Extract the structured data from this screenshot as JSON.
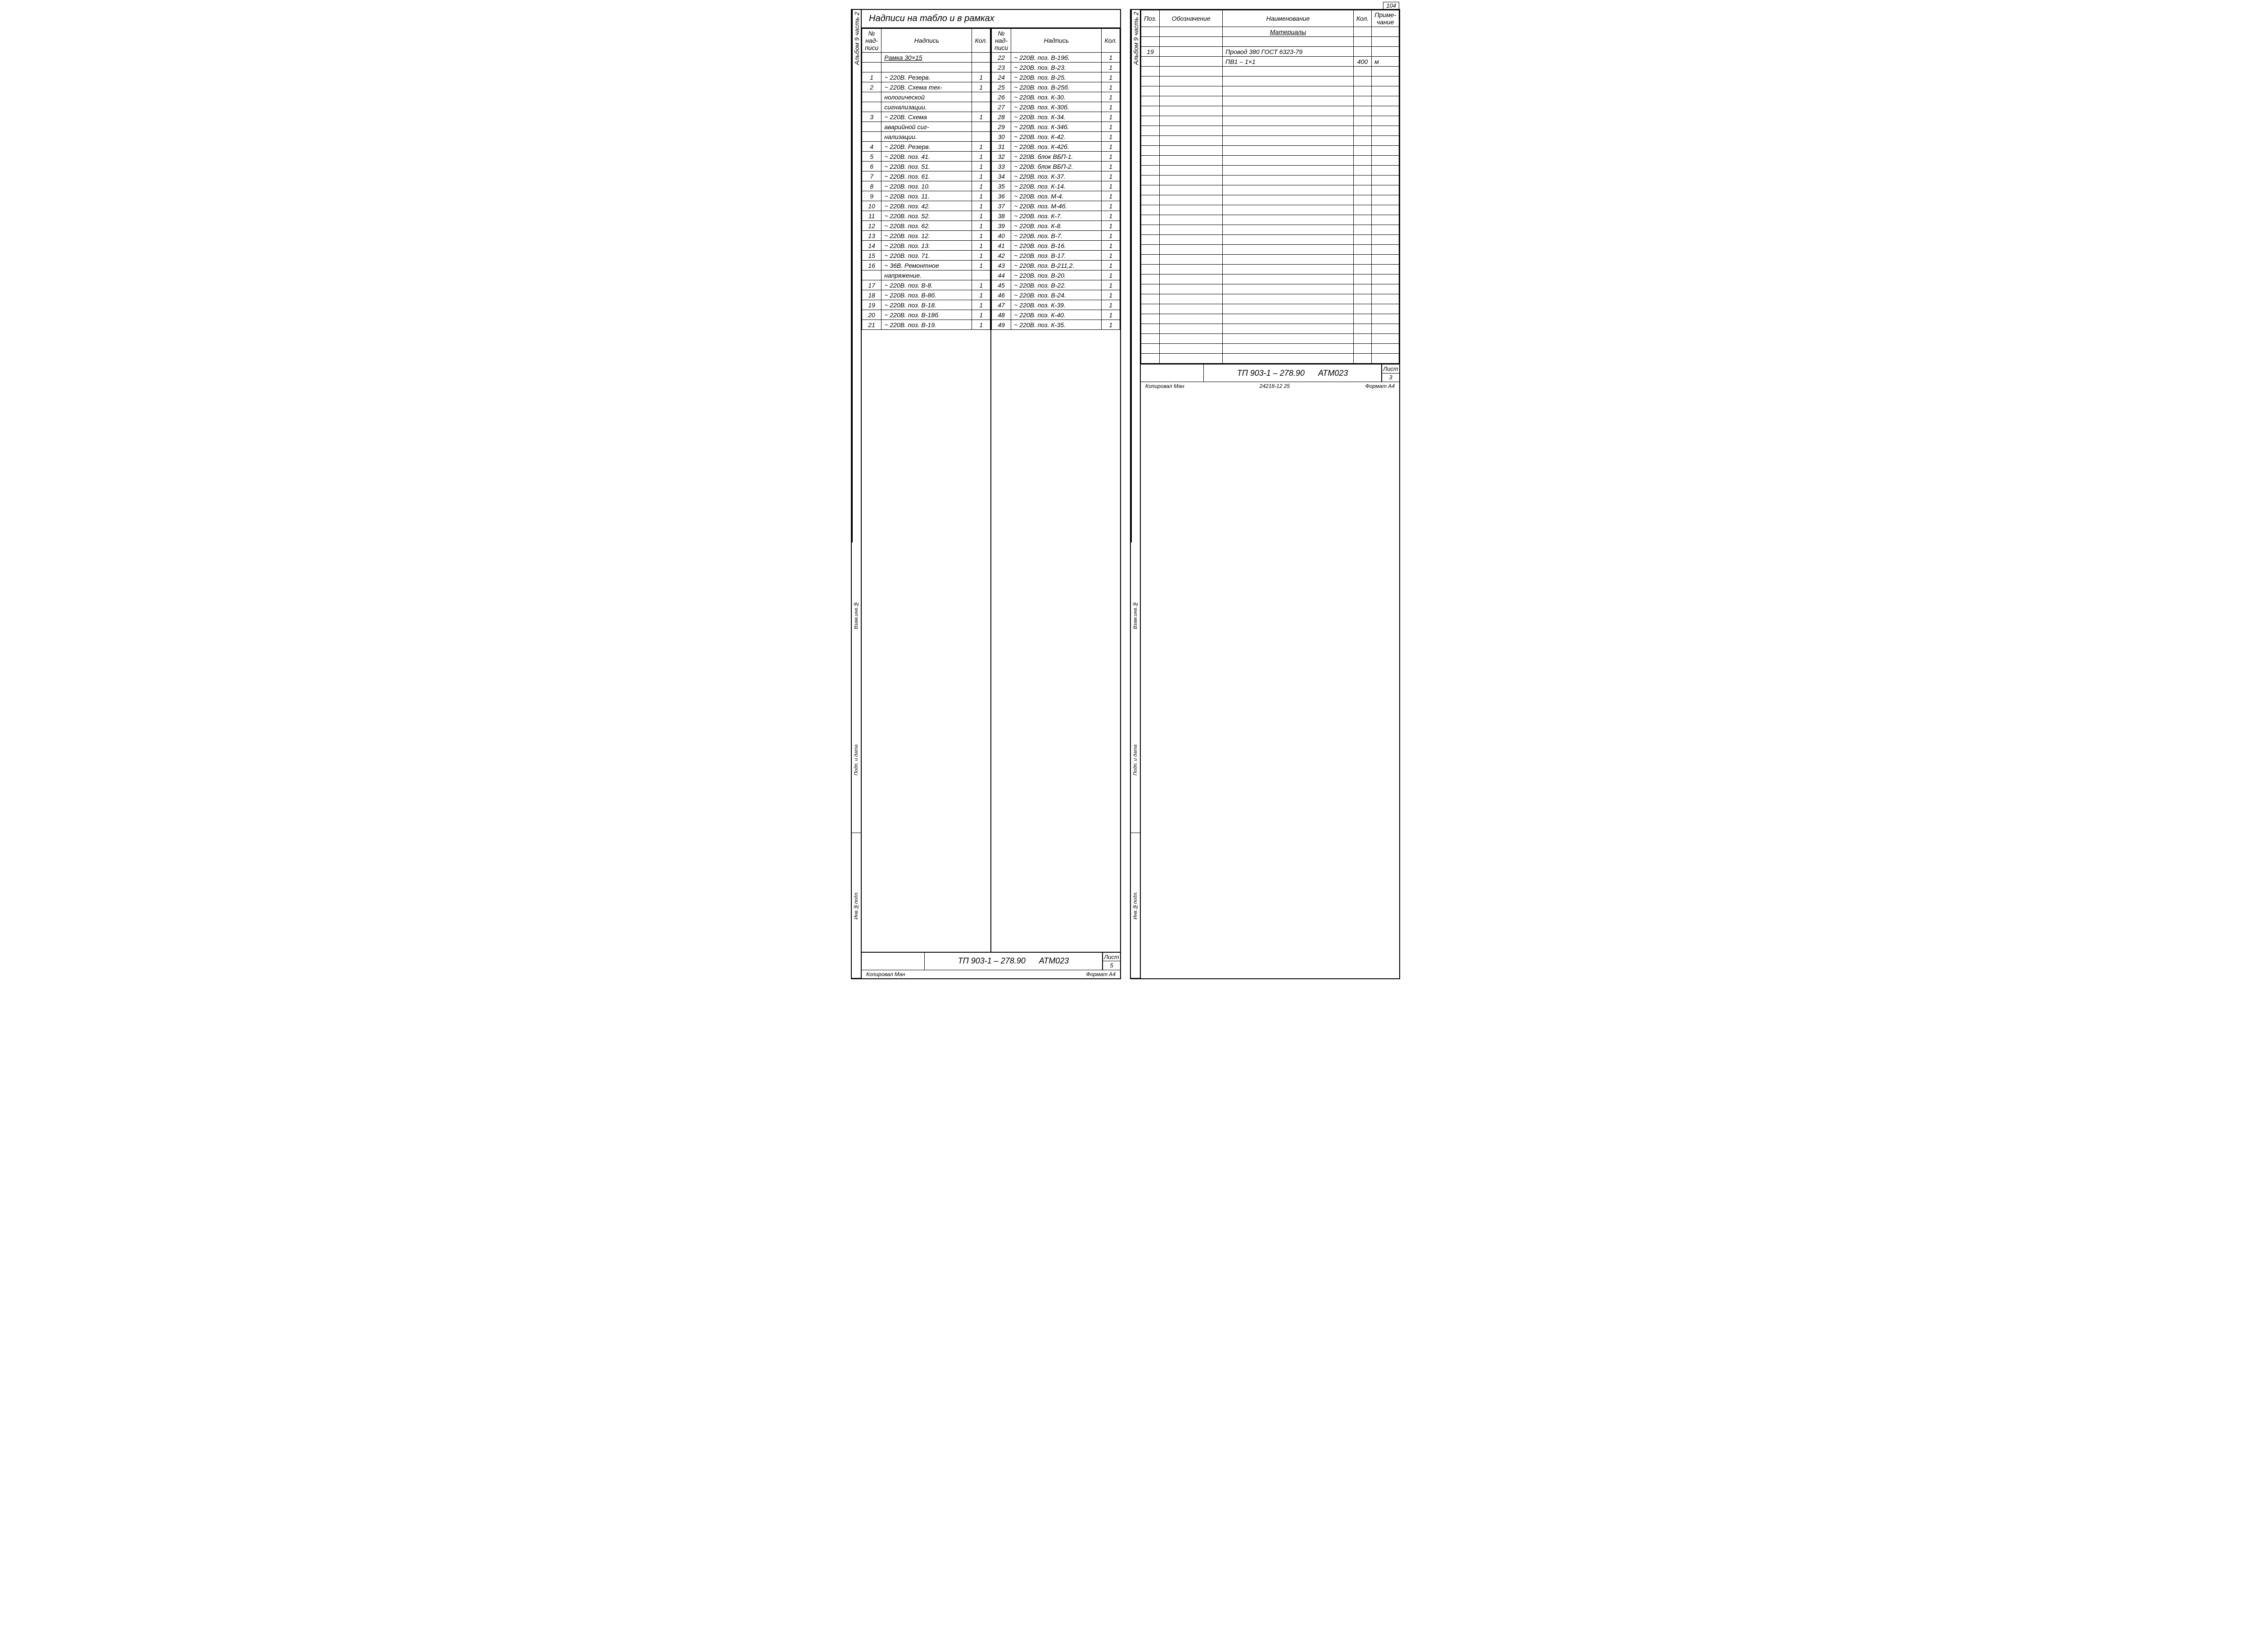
{
  "pageNumber": "104",
  "sideLabelTop": "Альбом 9 часть 2",
  "sideSegments": [
    "Инв.№подл.",
    "Подп. и дата",
    "Взам.инв.№"
  ],
  "sheet1": {
    "title": "Надписи на табло и в рамках",
    "headers": {
      "n": "№ над-писи",
      "label": "Надпись",
      "k": "Кол."
    },
    "underlinedRow": "Рамка 30×15",
    "left": [
      {
        "n": "",
        "t": "Рамка 30×15",
        "k": "",
        "u": true
      },
      {
        "n": "",
        "t": "",
        "k": ""
      },
      {
        "n": "1",
        "t": "~ 220В.  Резерв.",
        "k": "1"
      },
      {
        "n": "2",
        "t": "~ 220В.  Схема тех-",
        "k": "1"
      },
      {
        "n": "",
        "t": "нологической",
        "k": ""
      },
      {
        "n": "",
        "t": "сигнализации.",
        "k": ""
      },
      {
        "n": "3",
        "t": "~ 220В.  Схема",
        "k": "1"
      },
      {
        "n": "",
        "t": "аварийной  сиг-",
        "k": ""
      },
      {
        "n": "",
        "t": "нализации.",
        "k": ""
      },
      {
        "n": "4",
        "t": "~ 220В.  Резерв.",
        "k": "1"
      },
      {
        "n": "5",
        "t": "~ 220В.  поз. 41.",
        "k": "1"
      },
      {
        "n": "6",
        "t": "~ 220В.  поз. 51.",
        "k": "1"
      },
      {
        "n": "7",
        "t": "~ 220В.  поз. 61.",
        "k": "1"
      },
      {
        "n": "8",
        "t": "~ 220В.  поз. 10.",
        "k": "1"
      },
      {
        "n": "9",
        "t": "~ 220В.  поз. 11.",
        "k": "1"
      },
      {
        "n": "10",
        "t": "~ 220В.  поз. 42.",
        "k": "1"
      },
      {
        "n": "11",
        "t": "~ 220В.  поз. 52.",
        "k": "1"
      },
      {
        "n": "12",
        "t": "~ 220В.  поз. 62.",
        "k": "1"
      },
      {
        "n": "13",
        "t": "~ 220В.  поз. 12.",
        "k": "1"
      },
      {
        "n": "14",
        "t": "~ 220В.  поз. 13.",
        "k": "1"
      },
      {
        "n": "15",
        "t": "~ 220В.  поз. 71.",
        "k": "1"
      },
      {
        "n": "16",
        "t": "~ 36В.  Ремонтное",
        "k": "1"
      },
      {
        "n": "",
        "t": "напряжение.",
        "k": ""
      },
      {
        "n": "17",
        "t": "~ 220В. поз. В-8.",
        "k": "1"
      },
      {
        "n": "18",
        "t": "~ 220В. поз. В-8б.",
        "k": "1"
      },
      {
        "n": "19",
        "t": "~ 220В. поз. В-18.",
        "k": "1"
      },
      {
        "n": "20",
        "t": "~ 220В. поз. В-18б.",
        "k": "1"
      },
      {
        "n": "21",
        "t": "~ 220В. поз. В-19.",
        "k": "1"
      }
    ],
    "right": [
      {
        "n": "22",
        "t": "~ 220В. поз.  В-19б.",
        "k": "1"
      },
      {
        "n": "23",
        "t": "~ 220В. поз.  В-23.",
        "k": "1"
      },
      {
        "n": "24",
        "t": "~ 220В. поз.  В-25.",
        "k": "1"
      },
      {
        "n": "25",
        "t": "~ 220В. поз.  В-25б.",
        "k": "1"
      },
      {
        "n": "26",
        "t": "~ 220В. поз.  К-30.",
        "k": "1"
      },
      {
        "n": "27",
        "t": "~ 220В. поз.  К-30б.",
        "k": "1"
      },
      {
        "n": "28",
        "t": "~ 220В. поз.  К-34.",
        "k": "1"
      },
      {
        "n": "29",
        "t": "~ 220В. поз.  К-34б.",
        "k": "1"
      },
      {
        "n": "30",
        "t": "~ 220В. поз.  К-42.",
        "k": "1"
      },
      {
        "n": "31",
        "t": "~ 220В. поз.  К-42б.",
        "k": "1"
      },
      {
        "n": "32",
        "t": "~ 220В. блок  ВБП-1.",
        "k": "1"
      },
      {
        "n": "33",
        "t": "~ 220В. блок  ВБП-2.",
        "k": "1"
      },
      {
        "n": "34",
        "t": "~ 220В. поз.  К-37.",
        "k": "1"
      },
      {
        "n": "35",
        "t": "~ 220В. поз.  К-14.",
        "k": "1"
      },
      {
        "n": "36",
        "t": "~ 220В. поз.  М-4.",
        "k": "1"
      },
      {
        "n": "37",
        "t": "~ 220В. поз.  М-4б.",
        "k": "1"
      },
      {
        "n": "38",
        "t": "~ 220В. поз.  К-7.",
        "k": "1"
      },
      {
        "n": "39",
        "t": "~ 220В. поз.  К-8.",
        "k": "1"
      },
      {
        "n": "40",
        "t": "~ 220В. поз.  В-7.",
        "k": "1"
      },
      {
        "n": "41",
        "t": "~ 220В. поз.  В-16.",
        "k": "1"
      },
      {
        "n": "42",
        "t": "~ 220В. поз.  В-17.",
        "k": "1"
      },
      {
        "n": "43",
        "t": "~ 220В. поз. В-211,2.",
        "k": "1"
      },
      {
        "n": "44",
        "t": "~ 220В. поз.  В-20.",
        "k": "1"
      },
      {
        "n": "45",
        "t": "~ 220В. поз.  В-22.",
        "k": "1"
      },
      {
        "n": "46",
        "t": "~ 220В. поз.  В-24.",
        "k": "1"
      },
      {
        "n": "47",
        "t": "~ 220В. поз.  К-39.",
        "k": "1"
      },
      {
        "n": "48",
        "t": "~ 220В. поз.  К-40.",
        "k": "1"
      },
      {
        "n": "49",
        "t": "~ 220В. поз.  К-35.",
        "k": "1"
      }
    ],
    "footer": {
      "code": "ТП 903-1 – 278.90",
      "atm": "АТМ023",
      "sheetLabel": "Лист",
      "sheetNum": "5"
    },
    "bottom": {
      "left": "Копировал Ман",
      "right": "Формат А4"
    }
  },
  "sheet2": {
    "headers": {
      "poz": "Поз.",
      "oboz": "Обозначение",
      "naim": "Наименование",
      "kol": "Кол.",
      "prim": "Приме-чание"
    },
    "sectionTitle": "Материалы",
    "rows": [
      {
        "poz": "",
        "oboz": "",
        "naim": "Материалы",
        "kol": "",
        "prim": "",
        "u": true
      },
      {
        "poz": "",
        "oboz": "",
        "naim": "",
        "kol": "",
        "prim": ""
      },
      {
        "poz": "19",
        "oboz": "",
        "naim": "Провод 380  ГОСТ 6323-79",
        "kol": "",
        "prim": ""
      },
      {
        "poz": "",
        "oboz": "",
        "naim": "ПВ1 – 1×1",
        "kol": "400",
        "prim": "м"
      }
    ],
    "emptyRows": 30,
    "footer": {
      "code": "ТП 903-1 – 278.90",
      "atm": "АТМ023",
      "sheetLabel": "Лист",
      "sheetNum": "3"
    },
    "bottom": {
      "left": "Копировал Ман",
      "mid": "24218-12  25",
      "right": "Формат А4"
    }
  }
}
